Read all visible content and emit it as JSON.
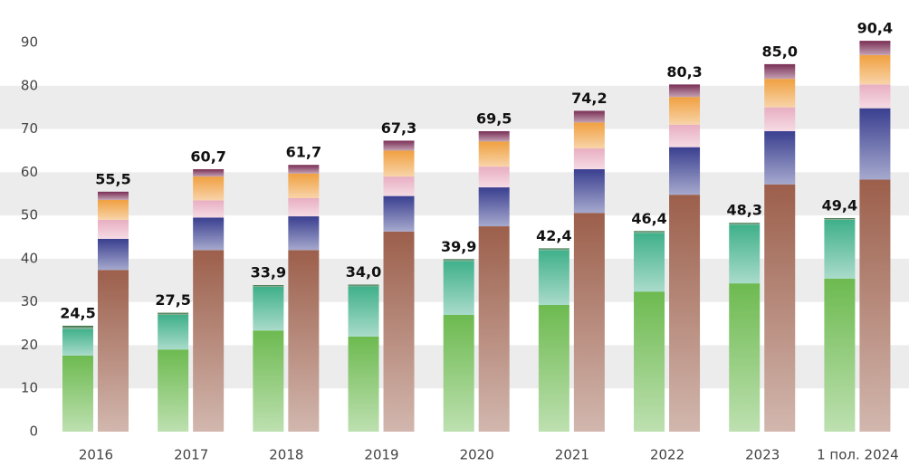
{
  "chart_data": {
    "type": "grouped-stacked-bar",
    "categories": [
      "2016",
      "2017",
      "2018",
      "2019",
      "2020",
      "2021",
      "2022",
      "2023",
      "1 пол. 2024"
    ],
    "stacks": [
      {
        "series": [
          {
            "color": "#6dba50",
            "values": [
              17.6,
              19.0,
              23.4,
              22.0,
              27.0,
              29.3,
              32.4,
              34.3,
              35.4
            ]
          },
          {
            "color": "#3fb08a",
            "values": [
              6.2,
              8.0,
              10.1,
              11.6,
              12.5,
              12.7,
              13.6,
              13.6,
              13.6
            ]
          },
          {
            "color": "#2e6b3c",
            "values": [
              0.7,
              0.5,
              0.4,
              0.4,
              0.4,
              0.4,
              0.4,
              0.4,
              0.4
            ]
          }
        ],
        "totals": [
          24.5,
          27.5,
          33.9,
          34.0,
          39.9,
          42.4,
          46.4,
          48.3,
          49.4
        ],
        "value_labels": [
          "24,5",
          "27,5",
          "33,9",
          "34,0",
          "39,9",
          "42,4",
          "46,4",
          "48,3",
          "49,4"
        ]
      },
      {
        "series": [
          {
            "color": "#9c5f4b",
            "values": [
              37.4,
              42.0,
              42.0,
              46.3,
              47.5,
              50.6,
              54.8,
              57.2,
              58.3
            ]
          },
          {
            "color": "#3a3f90",
            "values": [
              7.2,
              7.5,
              7.8,
              8.2,
              9.0,
              10.1,
              11.0,
              12.3,
              16.5
            ]
          },
          {
            "color": "#e8aec2",
            "values": [
              4.4,
              4.0,
              4.2,
              4.5,
              4.8,
              4.8,
              5.2,
              5.5,
              5.5
            ]
          },
          {
            "color": "#f0a040",
            "values": [
              4.6,
              5.5,
              5.7,
              6.0,
              5.8,
              6.0,
              6.4,
              6.6,
              6.8
            ]
          },
          {
            "color": "#7a2e55",
            "values": [
              1.9,
              1.7,
              2.0,
              2.3,
              2.4,
              2.7,
              2.9,
              3.4,
              3.3
            ]
          }
        ],
        "totals": [
          55.5,
          60.7,
          61.7,
          67.3,
          69.5,
          74.2,
          80.3,
          85.0,
          90.4
        ],
        "value_labels": [
          "55,5",
          "60,7",
          "61,7",
          "67,3",
          "69,5",
          "74,2",
          "80,3",
          "85,0",
          "90,4"
        ]
      }
    ],
    "ylim": [
      0,
      90
    ],
    "yticks": [
      0,
      10,
      20,
      30,
      40,
      50,
      60,
      70,
      80,
      90
    ],
    "grid": "bands"
  }
}
